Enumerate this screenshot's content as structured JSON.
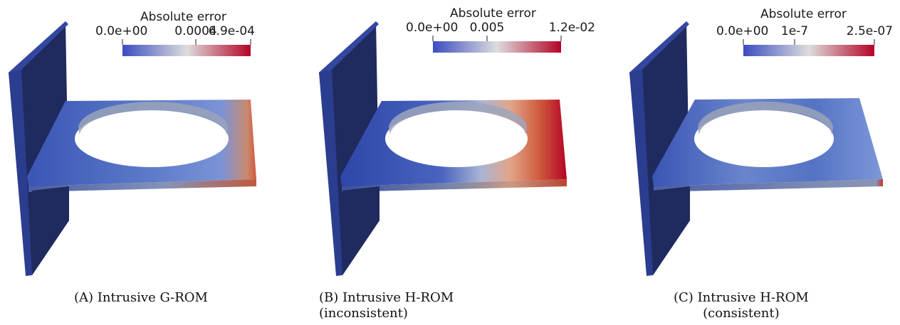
{
  "colors": {
    "beam_dark": "#1f2a5e",
    "beam_side": "#2b3d8f",
    "plate_base": "#3a55b4",
    "low": "#3b4cc0",
    "mid": "#dddddd",
    "high": "#b40426"
  },
  "panels": [
    {
      "label": "(A)",
      "caption_line1": "Intrusive G-ROM",
      "caption_line2": "",
      "colorbar": {
        "title": "Absolute error",
        "min_label": "0.0e+00",
        "mid_label": "0.0004",
        "max_label": "6.9e-04"
      }
    },
    {
      "label": "(B)",
      "caption_line1": "Intrusive H-ROM",
      "caption_line2": "(inconsistent)",
      "colorbar": {
        "title": "Absolute error",
        "min_label": "0.0e+00",
        "mid_label": "0.005",
        "max_label": "1.2e-02"
      }
    },
    {
      "label": "(C)",
      "caption_line1": "Intrusive H-ROM",
      "caption_line2": "(consistent)",
      "colorbar": {
        "title": "Absolute error",
        "min_label": "0.0e+00",
        "mid_label": "1e-7",
        "max_label": "2.5e-07"
      }
    }
  ]
}
